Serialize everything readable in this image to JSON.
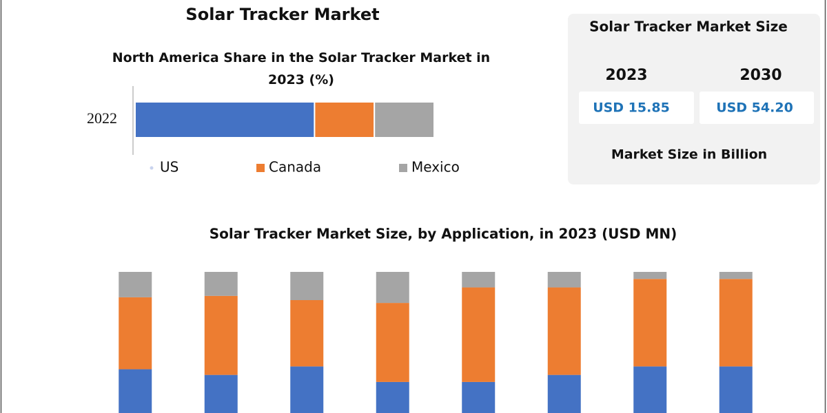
{
  "header": {
    "title": "Solar Tracker Market"
  },
  "market_size_panel": {
    "title": "Solar Tracker Market Size",
    "items": [
      {
        "year": "2023",
        "value": "USD 15.85"
      },
      {
        "year": "2030",
        "value": "USD 54.20"
      }
    ],
    "note": "Market Size in Billion"
  },
  "chart_data": [
    {
      "type": "bar",
      "orientation": "horizontal",
      "stacked": true,
      "title": "North America Share in the Solar Tracker Market in 2023 (%)",
      "categories": [
        "2022"
      ],
      "xlim": [
        0,
        100
      ],
      "legend": "bottom",
      "series": [
        {
          "name": "US",
          "color": "#4472c4",
          "values": [
            60
          ]
        },
        {
          "name": "Canada",
          "color": "#ed7d31",
          "values": [
            20
          ]
        },
        {
          "name": "Mexico",
          "color": "#a5a5a5",
          "values": [
            20
          ]
        }
      ]
    },
    {
      "type": "bar",
      "orientation": "vertical",
      "stacked": true,
      "title": "Solar Tracker Market Size, by Application, in 2023 (USD MN)",
      "categories": [
        null,
        null,
        null,
        null,
        null,
        null,
        null,
        null
      ],
      "ylim": [
        0,
        100
      ],
      "series": [
        {
          "color": "#4472c4",
          "values": [
            31,
            27,
            33,
            22,
            22,
            27,
            33,
            33
          ]
        },
        {
          "color": "#ed7d31",
          "values": [
            51,
            56,
            47,
            56,
            67,
            62,
            62,
            62
          ]
        },
        {
          "color": "#a5a5a5",
          "values": [
            18,
            17,
            20,
            22,
            11,
            11,
            5,
            5
          ]
        }
      ]
    }
  ]
}
